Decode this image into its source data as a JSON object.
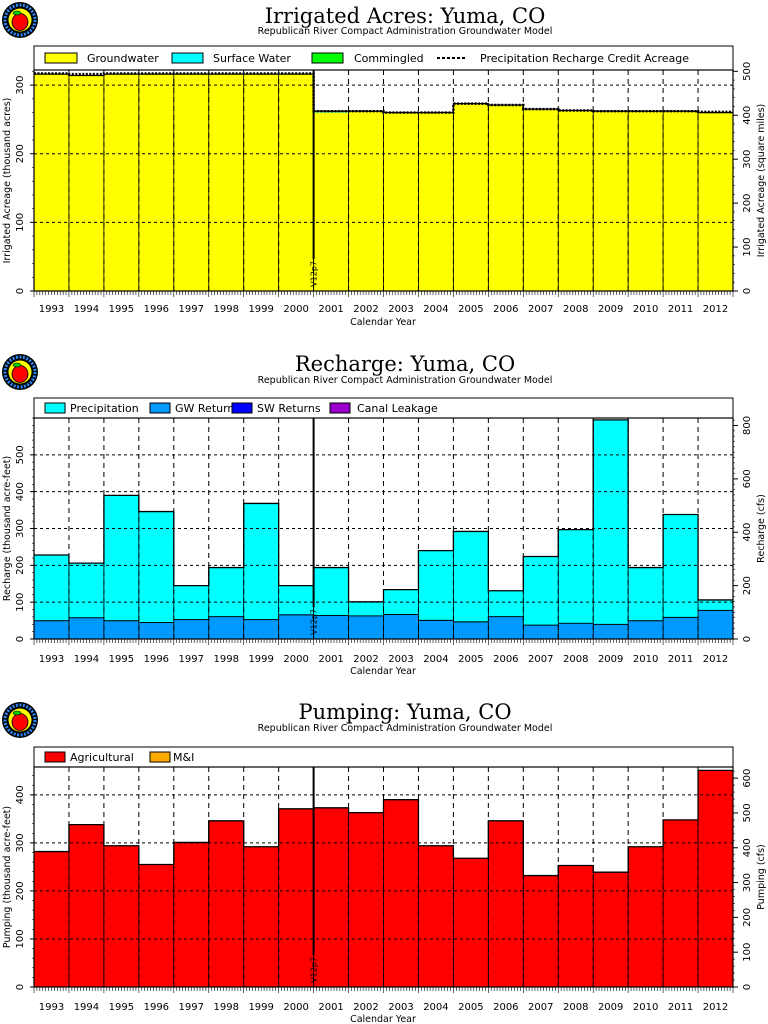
{
  "years": [
    "1993",
    "1994",
    "1995",
    "1996",
    "1997",
    "1998",
    "1999",
    "2000",
    "2001",
    "2002",
    "2003",
    "2004",
    "2005",
    "2006",
    "2007",
    "2008",
    "2009",
    "2010",
    "2011",
    "2012"
  ],
  "marker_label": "V12p7",
  "subtitle": "Republican River Compact Administration Groundwater Model",
  "colors": {
    "groundwater": "#ffff00",
    "surface_water": "#00ffff",
    "commingled": "#00ff00",
    "precipitation": "#00ffff",
    "gw_returns": "#0099ff",
    "sw_returns": "#0000ff",
    "canal_leakage": "#9900cc",
    "agricultural": "#ff0000",
    "mi": "#ffaa00"
  },
  "chart_data": [
    {
      "type": "bar",
      "stacked": true,
      "title": "Irrigated Acres: Yuma, CO",
      "subtitle": "Republican River Compact Administration Groundwater Model",
      "xlabel": "Calendar Year",
      "ylabel": "Irrigated Acreage (thousand acres)",
      "ylabel_right": "Irrigated Acreage (square miles)",
      "ylim": [
        0,
        322
      ],
      "yticks": [
        "0",
        "100",
        "200",
        "300"
      ],
      "ylim_right": [
        0,
        503
      ],
      "yticks_right": [
        "0",
        "100",
        "200",
        "300",
        "400",
        "500"
      ],
      "grid": true,
      "legend_position": "top",
      "series": [
        {
          "name": "Groundwater",
          "color_key": "groundwater",
          "values": [
            316,
            314,
            316,
            316,
            316,
            316,
            316,
            316,
            260,
            262,
            260,
            260,
            273,
            271,
            265,
            263,
            262,
            262,
            262,
            260
          ]
        },
        {
          "name": "Surface Water",
          "color_key": "surface_water",
          "values": [
            0,
            0,
            0,
            0,
            0,
            0,
            0,
            0,
            2,
            0,
            0,
            0,
            0,
            0,
            0,
            0,
            0,
            0,
            0,
            0
          ]
        },
        {
          "name": "Commingled",
          "color_key": "commingled",
          "values": [
            0,
            0,
            0,
            0,
            0,
            0,
            0,
            0,
            0,
            0,
            0,
            0,
            0,
            0,
            0,
            0,
            0,
            0,
            0,
            0
          ]
        }
      ],
      "line_series": {
        "name": "Precipitation Recharge Credit Acreage",
        "style": "dotted",
        "values": [
          317,
          316,
          317,
          317,
          317,
          317,
          317,
          317,
          262,
          262,
          260,
          260,
          273,
          271,
          265,
          263,
          262,
          262,
          262,
          261
        ]
      }
    },
    {
      "type": "bar",
      "stacked": true,
      "title": "Recharge: Yuma, CO",
      "subtitle": "Republican River Compact Administration Groundwater Model",
      "xlabel": "Calendar Year",
      "ylabel": "Recharge (thousand acre-feet)",
      "ylabel_right": "Recharge (cfs)",
      "ylim": [
        0,
        600
      ],
      "yticks": [
        "0",
        "100",
        "200",
        "300",
        "400",
        "500"
      ],
      "ylim_right": [
        0,
        828
      ],
      "yticks_right": [
        "0",
        "200",
        "400",
        "600",
        "800"
      ],
      "grid": true,
      "legend_position": "top",
      "series": [
        {
          "name": "GW Returns",
          "color_key": "gw_returns",
          "values": [
            51,
            59,
            51,
            46,
            54,
            62,
            54,
            67,
            65,
            64,
            68,
            52,
            48,
            62,
            39,
            44,
            41,
            51,
            60,
            79
          ]
        },
        {
          "name": "SW Returns",
          "color_key": "sw_returns",
          "values": [
            0,
            0,
            0,
            0,
            0,
            0,
            0,
            0,
            0,
            0,
            0,
            0,
            0,
            0,
            0,
            0,
            0,
            0,
            0,
            0
          ]
        },
        {
          "name": "Canal Leakage",
          "color_key": "canal_leakage",
          "values": [
            0,
            0,
            0,
            0,
            0,
            0,
            0,
            0,
            0,
            0,
            0,
            0,
            0,
            0,
            0,
            0,
            0,
            0,
            0,
            0
          ]
        },
        {
          "name": "Precipitation",
          "color_key": "precipitation",
          "values": [
            177,
            147,
            339,
            300,
            91,
            132,
            314,
            78,
            129,
            37,
            66,
            188,
            244,
            69,
            185,
            253,
            554,
            143,
            278,
            27
          ]
        }
      ],
      "legend_order": [
        "Precipitation",
        "GW Returns",
        "SW Returns",
        "Canal Leakage"
      ]
    },
    {
      "type": "bar",
      "stacked": true,
      "title": "Pumping: Yuma, CO",
      "subtitle": "Republican River Compact Administration Groundwater Model",
      "xlabel": "Calendar Year",
      "ylabel": "Pumping (thousand acre-feet)",
      "ylabel_right": "Pumping (cfs)",
      "ylim": [
        0,
        458
      ],
      "yticks": [
        "0",
        "100",
        "200",
        "300",
        "400"
      ],
      "ylim_right": [
        0,
        632
      ],
      "yticks_right": [
        "0",
        "100",
        "200",
        "300",
        "400",
        "500",
        "600"
      ],
      "grid": true,
      "legend_position": "top",
      "series": [
        {
          "name": "Agricultural",
          "color_key": "agricultural",
          "values": [
            282,
            338,
            294,
            255,
            301,
            346,
            292,
            371,
            373,
            363,
            390,
            294,
            268,
            346,
            232,
            253,
            239,
            292,
            348,
            451
          ]
        },
        {
          "name": "M&I",
          "color_key": "mi",
          "values": [
            0,
            0,
            0,
            0,
            0,
            0,
            0,
            0,
            0,
            0,
            0,
            0,
            0,
            0,
            0,
            0,
            0,
            0,
            0,
            0
          ]
        }
      ],
      "legend_order": [
        "Agricultural",
        "M&I"
      ]
    }
  ]
}
